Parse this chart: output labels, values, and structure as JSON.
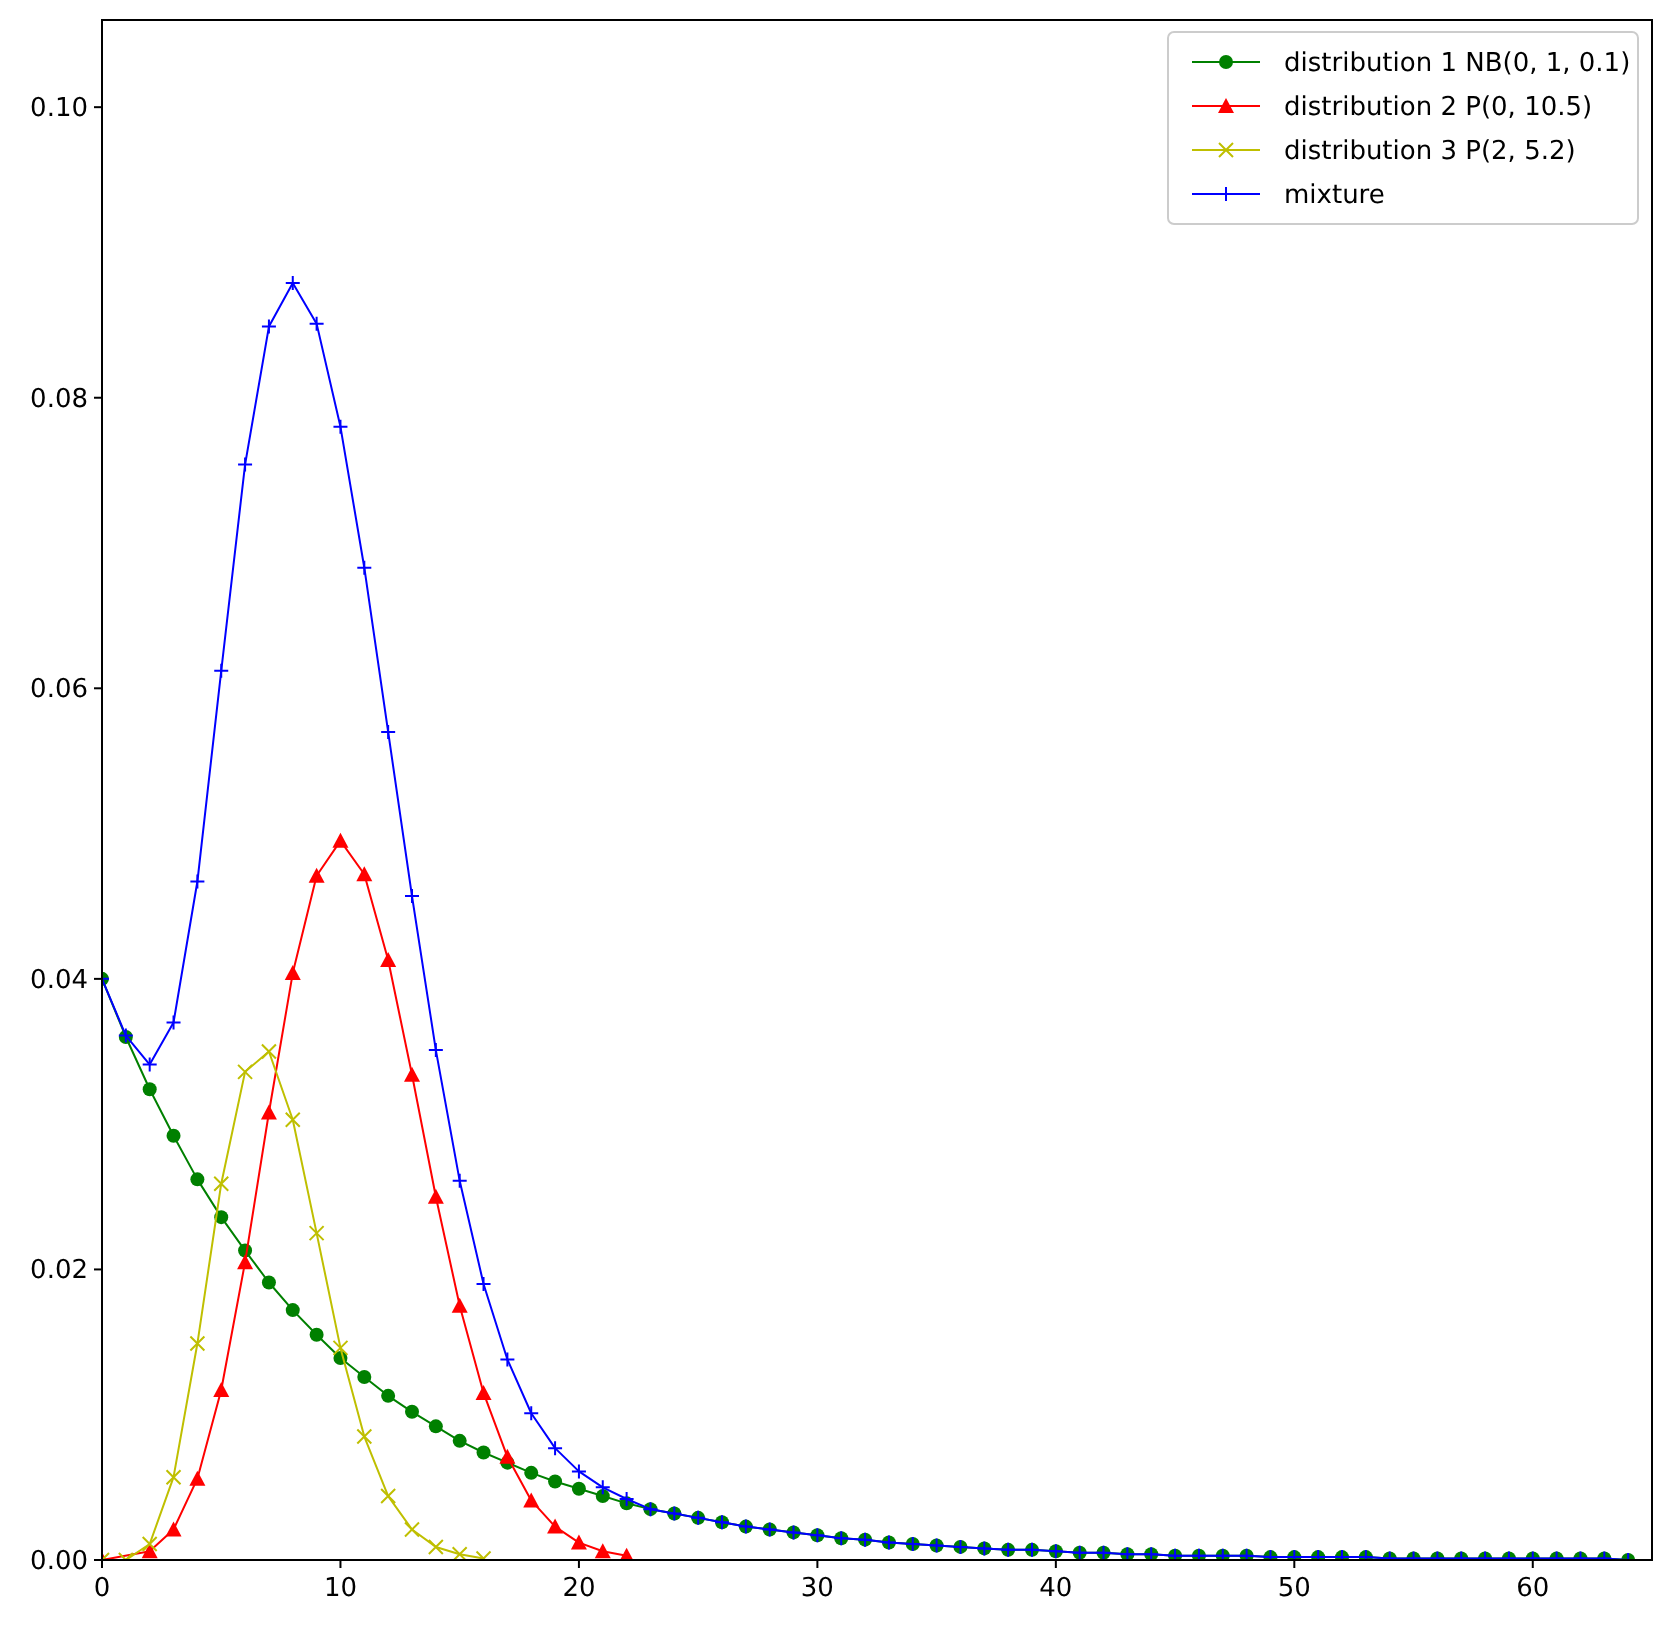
{
  "chart_data": {
    "type": "line",
    "xlim": [
      0,
      65
    ],
    "ylim": [
      0,
      0.106
    ],
    "xticks": [
      0,
      10,
      20,
      30,
      40,
      50,
      60
    ],
    "yticks": [
      {
        "value": 0,
        "label": "0.00"
      },
      {
        "value": 0.02,
        "label": "0.02"
      },
      {
        "value": 0.04,
        "label": "0.04"
      },
      {
        "value": 0.06,
        "label": "0.06"
      },
      {
        "value": 0.08,
        "label": "0.08"
      },
      {
        "value": 0.1,
        "label": "0.10"
      }
    ],
    "legend": "top right",
    "grid": false,
    "series": [
      {
        "name": "distribution 1 NB(0, 1, 0.1)",
        "color": "#008000",
        "marker": "circle",
        "x": [
          0,
          1,
          2,
          3,
          4,
          5,
          6,
          7,
          8,
          9,
          10,
          11,
          12,
          13,
          14,
          15,
          16,
          17,
          18,
          19,
          20,
          21,
          22,
          23,
          24,
          25,
          26,
          27,
          28,
          29,
          30,
          31,
          32,
          33,
          34,
          35,
          36,
          37,
          38,
          39,
          40,
          41,
          42,
          43,
          44,
          45,
          46,
          47,
          48,
          49,
          50,
          51,
          52,
          53,
          54,
          55,
          56,
          57,
          58,
          59,
          60,
          61,
          62,
          63,
          64
        ],
        "values": [
          0.04,
          0.036,
          0.0324,
          0.0292,
          0.0262,
          0.0236,
          0.0213,
          0.0191,
          0.0172,
          0.0155,
          0.0139,
          0.0126,
          0.0113,
          0.0102,
          0.0092,
          0.0082,
          0.0074,
          0.0067,
          0.006,
          0.0054,
          0.0049,
          0.0044,
          0.0039,
          0.0035,
          0.0032,
          0.0029,
          0.0026,
          0.0023,
          0.0021,
          0.0019,
          0.0017,
          0.0015,
          0.0014,
          0.0012,
          0.0011,
          0.001,
          0.0009,
          0.0008,
          0.0007,
          0.0007,
          0.0006,
          0.0005,
          0.0005,
          0.0004,
          0.0004,
          0.0003,
          0.0003,
          0.0003,
          0.0003,
          0.0002,
          0.0002,
          0.0002,
          0.0002,
          0.0002,
          0.0001,
          0.0001,
          0.0001,
          0.0001,
          0.0001,
          0.0001,
          0.0001,
          0.0001,
          0.0001,
          0.0001,
          0.0
        ]
      },
      {
        "name": "distribution 2 P(0, 10.5)",
        "color": "#ff0000",
        "marker": "triangle",
        "x": [
          0,
          1,
          2,
          3,
          4,
          5,
          6,
          7,
          8,
          9,
          10,
          11,
          12,
          13,
          14,
          15,
          16,
          17,
          18,
          19,
          20,
          21,
          22
        ],
        "values": [
          0.0,
          null,
          0.0006,
          0.0021,
          0.0056,
          0.0117,
          0.0205,
          0.0308,
          0.0404,
          0.0471,
          0.0495,
          0.0472,
          0.0413,
          0.0334,
          0.025,
          0.0175,
          0.0115,
          0.0071,
          0.0041,
          0.0023,
          0.0012,
          0.0006,
          0.0003
        ]
      },
      {
        "name": "distribution 3 P(2, 5.2)",
        "color": "#bfbf00",
        "marker": "cross",
        "x": [
          0,
          1,
          2,
          3,
          4,
          5,
          6,
          7,
          8,
          9,
          10,
          11,
          12,
          13,
          14,
          15,
          16
        ],
        "values": [
          0.0,
          0.0,
          0.0011,
          0.0057,
          0.0149,
          0.0259,
          0.0336,
          0.035,
          0.0303,
          0.0225,
          0.0146,
          0.0085,
          0.0044,
          0.0021,
          0.0009,
          0.0004,
          0.0001
        ]
      },
      {
        "name": "mixture",
        "color": "#0000ff",
        "marker": "plus",
        "x": [
          0,
          1,
          2,
          3,
          4,
          5,
          6,
          7,
          8,
          9,
          10,
          11,
          12,
          13,
          14,
          15,
          16,
          17,
          18,
          19,
          20,
          21,
          22,
          23,
          24,
          25,
          26,
          27,
          28,
          29,
          30,
          31,
          32,
          33,
          34,
          35,
          36,
          37,
          38,
          39,
          40,
          41,
          42,
          43,
          44,
          45,
          46,
          47,
          48,
          49,
          50,
          51,
          52,
          53,
          54,
          55,
          56,
          57,
          58,
          59,
          60,
          61,
          62,
          63,
          64
        ],
        "values": [
          0.04,
          0.0361,
          0.0341,
          0.037,
          0.0467,
          0.0612,
          0.0754,
          0.0849,
          0.0879,
          0.0851,
          0.078,
          0.0683,
          0.057,
          0.0457,
          0.0351,
          0.0261,
          0.019,
          0.0138,
          0.0101,
          0.0077,
          0.0061,
          0.005,
          0.0042,
          0.0035,
          0.0032,
          0.0029,
          0.0026,
          0.0023,
          0.0021,
          0.0019,
          0.0017,
          0.0015,
          0.0014,
          0.0012,
          0.0011,
          0.001,
          0.0009,
          0.0008,
          0.0007,
          0.0007,
          0.0006,
          0.0005,
          0.0005,
          0.0004,
          0.0004,
          0.0003,
          0.0003,
          0.0003,
          0.0003,
          0.0002,
          0.0002,
          0.0002,
          0.0002,
          0.0002,
          0.0001,
          0.0001,
          0.0001,
          0.0001,
          0.0001,
          0.0001,
          0.0001,
          0.0001,
          0.0001,
          0.0001,
          0.0
        ]
      }
    ]
  }
}
